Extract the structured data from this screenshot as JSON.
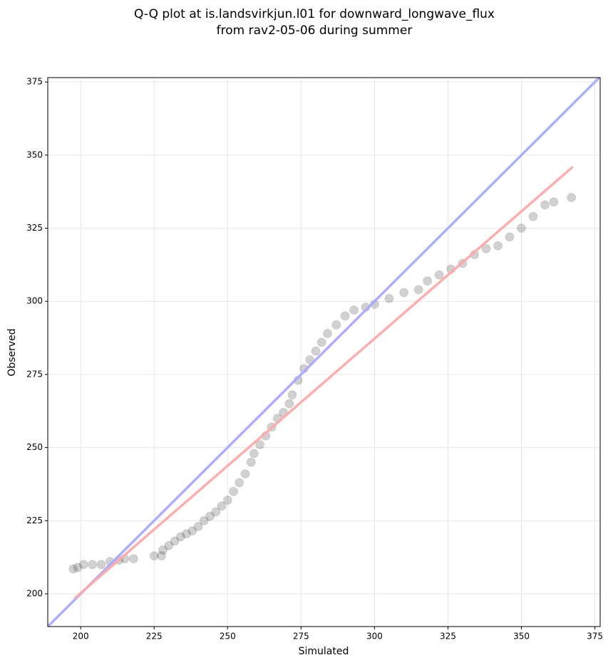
{
  "chart_data": {
    "type": "scatter",
    "title": [
      "Q-Q plot at is.landsvirkjun.l01 for downward_longwave_flux",
      "from rav2-05-06 during summer"
    ],
    "xlabel": "Simulated",
    "ylabel": "Observed",
    "xlim": [
      188.8,
      376.8
    ],
    "ylim": [
      188.8,
      376.5
    ],
    "xticks": [
      200,
      225,
      250,
      275,
      300,
      325,
      350,
      375
    ],
    "yticks": [
      200,
      225,
      250,
      275,
      300,
      325,
      350,
      375
    ],
    "grid": true,
    "series": [
      {
        "type": "scatter",
        "color": "#000000",
        "x": [
          197.5,
          199,
          201,
          204,
          207,
          210,
          213,
          215,
          218,
          225,
          227.5,
          228,
          230,
          232,
          234,
          236,
          238,
          240,
          242,
          244,
          246,
          248,
          250,
          252,
          254,
          256,
          258,
          259,
          261,
          263,
          265,
          267,
          269,
          271,
          272,
          274,
          276,
          278,
          280,
          282,
          284,
          287,
          290,
          293,
          297,
          300,
          305,
          310,
          315,
          318,
          322,
          326,
          330,
          334,
          338,
          342,
          346,
          350,
          354,
          358,
          361,
          367
        ],
        "values": [
          208.5,
          209,
          210,
          210,
          210,
          211,
          211.5,
          212,
          212,
          213,
          213,
          215,
          216.5,
          218,
          219.5,
          220.5,
          221.5,
          223,
          225,
          226.5,
          228,
          230,
          232,
          235,
          238,
          241,
          245,
          248,
          251,
          254,
          257,
          260,
          262,
          265,
          268,
          273,
          277,
          280,
          283,
          286,
          289,
          292,
          295,
          297,
          298,
          299,
          301,
          303,
          304,
          307,
          309,
          311,
          313,
          316,
          318,
          319,
          322,
          325,
          329,
          333,
          334,
          335.5
        ]
      },
      {
        "type": "line",
        "color": "#aaaaff",
        "x": [
          188.8,
          376.5
        ],
        "values": [
          188.8,
          376.5
        ]
      },
      {
        "type": "line",
        "color": "#ffaaaa",
        "x": [
          198,
          367.5
        ],
        "values": [
          198.5,
          346
        ]
      }
    ]
  }
}
